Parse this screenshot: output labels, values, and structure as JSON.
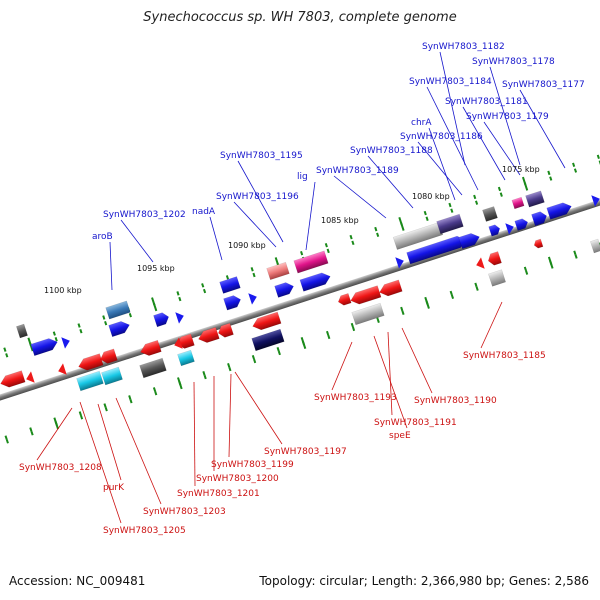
{
  "title": "Synechococcus sp. WH 7803, complete genome",
  "footer": {
    "accession": "Accession: NC_009481",
    "summary": "Topology: circular; Length: 2,366,980 bp; Genes: 2,586"
  },
  "colors": {
    "forward_label": "#1515cc",
    "reverse_label": "#cc1111",
    "backbone": "#7f7f7f",
    "tick": "#1a8a1a",
    "forward_gene": "#1a1aee",
    "reverse_gene": "#ee1a1a"
  },
  "kbp_labels": [
    "1075 kbp",
    "1080 kbp",
    "1085 kbp",
    "1090 kbp",
    "1095 kbp",
    "1100 kbp"
  ],
  "forward_genes": [
    "SynWH7803_1182",
    "SynWH7803_1178",
    "SynWH7803_1184",
    "SynWH7803_1177",
    "SynWH7803_1181",
    "SynWH7803_1179",
    "chrA",
    "SynWH7803_1186",
    "SynWH7803_1188",
    "SynWH7803_1195",
    "lig",
    "SynWH7803_1189",
    "SynWH7803_1196",
    "nadA",
    "SynWH7803_1202",
    "aroB"
  ],
  "reverse_genes": [
    "SynWH7803_1185",
    "SynWH7803_1190",
    "SynWH7803_1193",
    "SynWH7803_1191",
    "speE",
    "SynWH7803_1197",
    "SynWH7803_1199",
    "SynWH7803_1200",
    "SynWH7803_1201",
    "SynWH7803_1208",
    "purK",
    "SynWH7803_1203",
    "SynWH7803_1205"
  ]
}
